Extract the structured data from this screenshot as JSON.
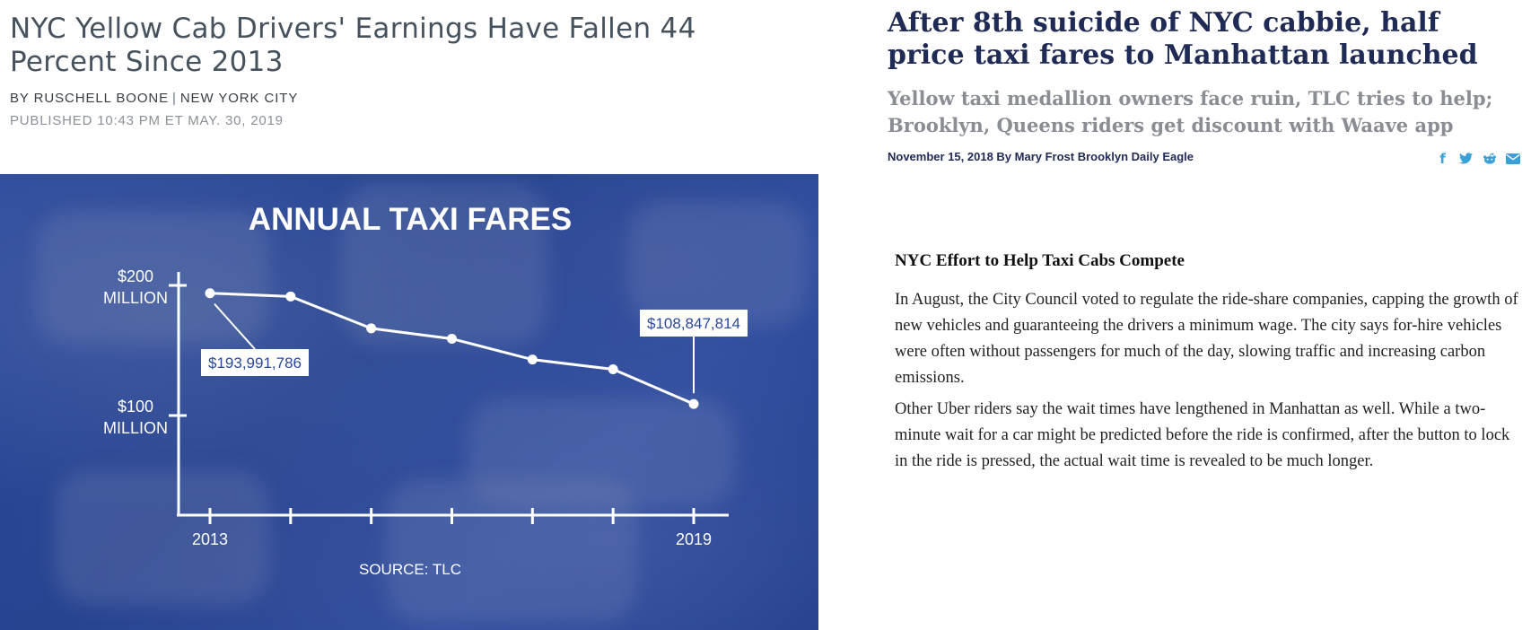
{
  "left_article": {
    "headline": "NYC Yellow Cab Drivers' Earnings Have Fallen 44 Percent Since 2013",
    "byline_author": "BY RUSCHELL BOONE",
    "byline_separator": "|",
    "byline_location": "NEW YORK CITY",
    "published": "PUBLISHED 10:43 PM ET MAY. 30, 2019"
  },
  "chart_data": {
    "type": "line",
    "title": "ANNUAL TAXI FARES",
    "source": "SOURCE: TLC",
    "x": [
      2013,
      2014,
      2015,
      2016,
      2017,
      2018,
      2019
    ],
    "series": [
      {
        "values": [
          193991786,
          191500000,
          167000000,
          159000000,
          143000000,
          135500000,
          108847814
        ]
      }
    ],
    "y_ticks": [
      {
        "value": 200000000,
        "label_line1": "$200",
        "label_line2": "MILLION"
      },
      {
        "value": 100000000,
        "label_line1": "$100",
        "label_line2": "MILLION"
      }
    ],
    "x_tick_labels": {
      "first": "2013",
      "last": "2019"
    },
    "annotations": {
      "first": "$193,991,786",
      "last": "$108,847,814"
    },
    "ylim": [
      0,
      200000000
    ],
    "grid": false,
    "colors": {
      "background": "#2a479c",
      "line": "#ffffff",
      "label_box": "#ffffff",
      "label_text": "#2a479c"
    }
  },
  "right_article": {
    "headline": "After 8th suicide of NYC cabbie, half price taxi fares to Manhattan launched",
    "subheadline": "Yellow taxi medallion owners face ruin, TLC tries to help; Brooklyn, Queens riders get discount with Waave app",
    "meta": "November 15, 2018 By Mary Frost Brooklyn Daily Eagle",
    "share_icons": [
      "facebook-icon",
      "twitter-icon",
      "reddit-icon",
      "email-icon"
    ],
    "section_title": "NYC Effort to Help Taxi Cabs Compete",
    "paragraphs": [
      "In August, the City Council voted to regulate the ride-share companies, capping the growth of new vehicles and guaranteeing the drivers a minimum wage. The city says for-hire vehicles were often without passengers for much of the day, slowing traffic and increasing carbon emissions.",
      "Other Uber riders say the wait times have lengthened in Manhattan as well. While a two-minute wait for a car might be predicted before the ride is confirmed, after the button to lock in the ride is pressed, the actual wait time is revealed to be much longer."
    ],
    "colors": {
      "headline": "#1f2a55",
      "subheadline": "#8a8d93",
      "share": "#3aa0d8"
    }
  }
}
